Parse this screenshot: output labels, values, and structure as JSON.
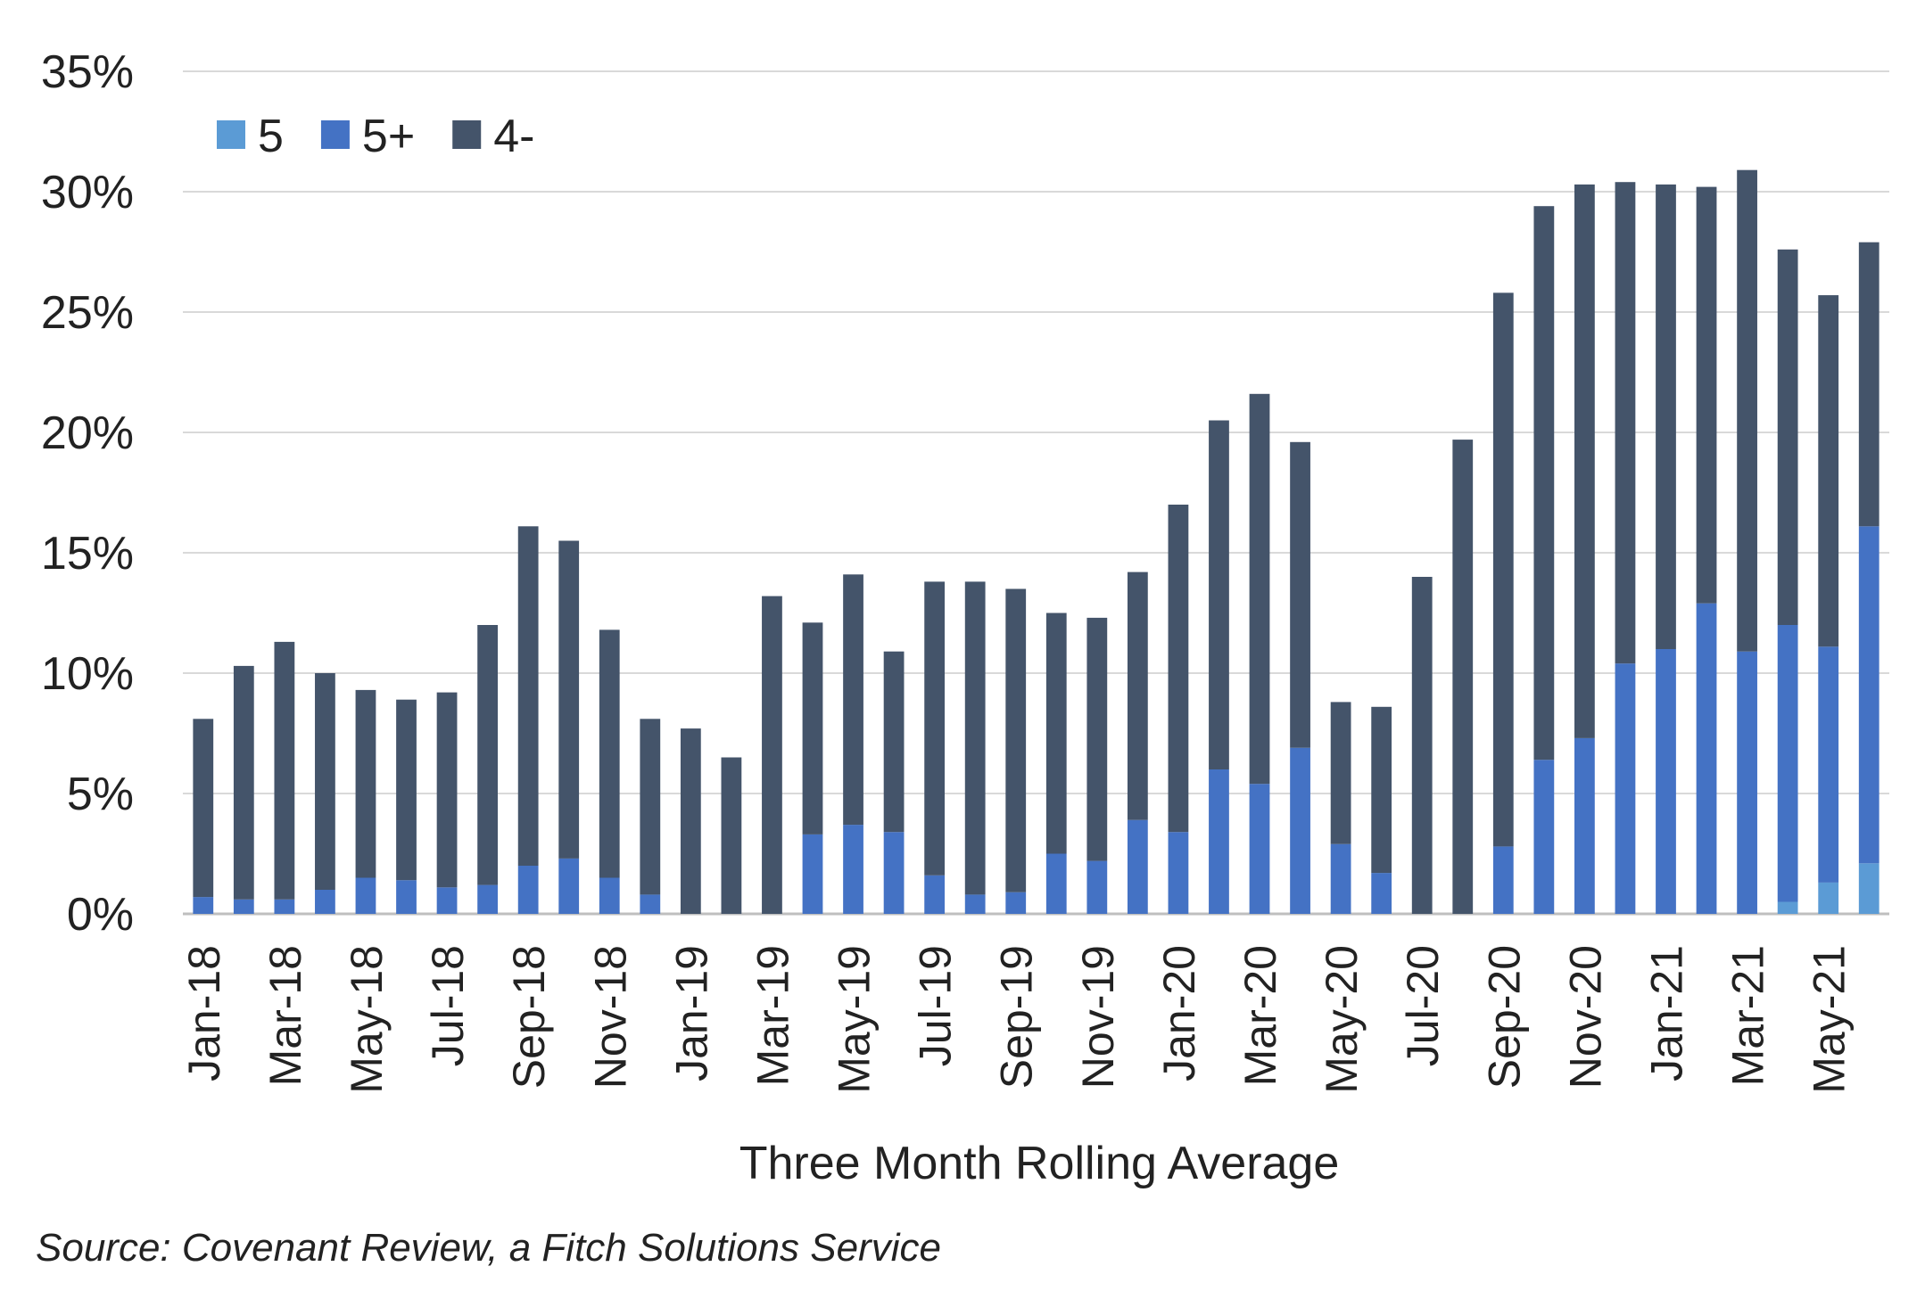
{
  "chart_data": {
    "type": "bar",
    "stacked": true,
    "title": "",
    "xlabel": "Three Month Rolling Average",
    "ylabel": "",
    "ylim": [
      0,
      35
    ],
    "yticks": [
      "0%",
      "5%",
      "10%",
      "15%",
      "20%",
      "25%",
      "30%",
      "35%"
    ],
    "grid": true,
    "legend_position": "top-left",
    "categories": [
      "Jan-18",
      "Feb-18",
      "Mar-18",
      "Apr-18",
      "May-18",
      "Jun-18",
      "Jul-18",
      "Aug-18",
      "Sep-18",
      "Oct-18",
      "Nov-18",
      "Dec-18",
      "Jan-19",
      "Feb-19",
      "Mar-19",
      "Apr-19",
      "May-19",
      "Jun-19",
      "Jul-19",
      "Aug-19",
      "Sep-19",
      "Oct-19",
      "Nov-19",
      "Dec-19",
      "Jan-20",
      "Feb-20",
      "Mar-20",
      "Apr-20",
      "May-20",
      "Jun-20",
      "Jul-20",
      "Aug-20",
      "Sep-20",
      "Oct-20",
      "Nov-20",
      "Dec-20",
      "Jan-21",
      "Feb-21",
      "Mar-21",
      "Apr-21",
      "May-21",
      "Jun-21"
    ],
    "tick_labels": [
      "Jan-18",
      "",
      "Mar-18",
      "",
      "May-18",
      "",
      "Jul-18",
      "",
      "Sep-18",
      "",
      "Nov-18",
      "",
      "Jan-19",
      "",
      "Mar-19",
      "",
      "May-19",
      "",
      "Jul-19",
      "",
      "Sep-19",
      "",
      "Nov-19",
      "",
      "Jan-20",
      "",
      "Mar-20",
      "",
      "May-20",
      "",
      "Jul-20",
      "",
      "Sep-20",
      "",
      "Nov-20",
      "",
      "Jan-21",
      "",
      "Mar-21",
      "",
      "May-21",
      ""
    ],
    "series": [
      {
        "name": "5",
        "color": "#5B9BD5",
        "values": [
          0,
          0,
          0,
          0,
          0,
          0,
          0,
          0,
          0,
          0,
          0,
          0,
          0,
          0,
          0,
          0,
          0,
          0,
          0,
          0,
          0,
          0,
          0,
          0,
          0,
          0,
          0,
          0,
          0,
          0,
          0,
          0,
          0,
          0,
          0,
          0,
          0,
          0,
          0,
          0.5,
          1.3,
          2.1
        ]
      },
      {
        "name": "5+",
        "color": "#4472C4",
        "values": [
          0.7,
          0.6,
          0.6,
          1.0,
          1.5,
          1.4,
          1.1,
          1.2,
          2.0,
          2.3,
          1.5,
          0.8,
          0,
          0,
          0,
          3.3,
          3.7,
          3.4,
          1.6,
          0.8,
          0.9,
          2.5,
          2.2,
          3.9,
          3.4,
          6.0,
          5.4,
          6.9,
          2.9,
          1.7,
          0,
          0,
          2.8,
          6.4,
          7.3,
          10.4,
          11.0,
          12.9,
          10.9,
          11.5,
          9.8,
          14.0
        ]
      },
      {
        "name": "4-",
        "color": "#44546A",
        "values": [
          7.4,
          9.7,
          10.7,
          9.0,
          7.8,
          7.5,
          8.1,
          10.8,
          14.1,
          13.2,
          10.3,
          7.3,
          7.7,
          6.5,
          13.2,
          8.8,
          10.4,
          7.5,
          12.2,
          13.0,
          12.6,
          10.0,
          10.1,
          10.3,
          13.6,
          14.5,
          16.2,
          12.7,
          5.9,
          6.9,
          14.0,
          19.7,
          23.0,
          23.0,
          23.0,
          20.0,
          19.3,
          17.3,
          20.0,
          15.6,
          14.6,
          11.8
        ]
      }
    ]
  },
  "source": "Source: Covenant Review, a Fitch Solutions Service",
  "colors": {
    "grid": "#D9D9D9",
    "axis": "#BFBFBF",
    "text": "#222222"
  }
}
